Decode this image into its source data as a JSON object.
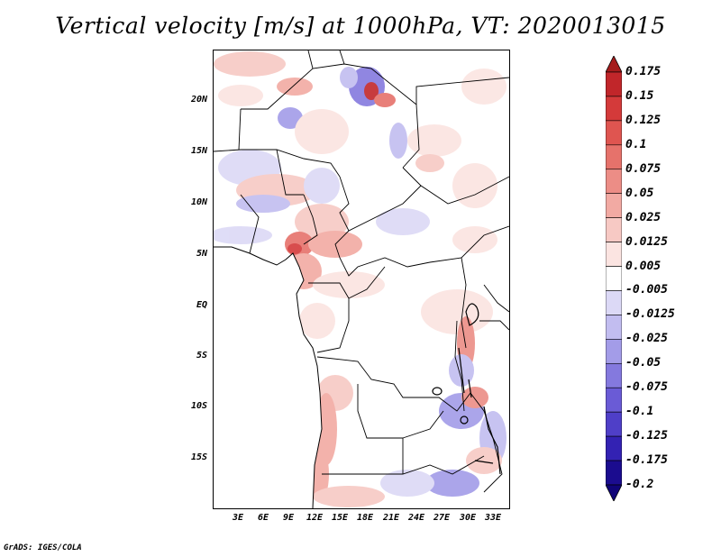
{
  "title": "Vertical velocity [m/s] at 1000hPa, VT: 2020013015",
  "footer": "GrADS: IGES/COLA",
  "map": {
    "lat_labels": [
      "20N",
      "15N",
      "10N",
      "5N",
      "EQ",
      "5S",
      "10S",
      "15S"
    ],
    "lon_labels": [
      "3E",
      "6E",
      "9E",
      "12E",
      "15E",
      "18E",
      "21E",
      "24E",
      "27E",
      "30E",
      "33E"
    ]
  },
  "colorbar": {
    "labels": [
      "0.175",
      "0.15",
      "0.125",
      "0.1",
      "0.075",
      "0.05",
      "0.025",
      "0.0125",
      "0.005",
      "-0.005",
      "-0.0125",
      "-0.025",
      "-0.05",
      "-0.075",
      "-0.1",
      "-0.125",
      "-0.175",
      "-0.2"
    ],
    "colors": [
      "#a51c1c",
      "#c1262a",
      "#d43a3a",
      "#df5550",
      "#e6726b",
      "#ec8d86",
      "#f2aaa3",
      "#f7c9c4",
      "#fbe4e1",
      "#ffffff",
      "#dcd9f6",
      "#c2bdf0",
      "#a39ce8",
      "#8479de",
      "#6a5bd6",
      "#4f3fc8",
      "#3322b3",
      "#1b0c8f",
      "#100478"
    ]
  }
}
